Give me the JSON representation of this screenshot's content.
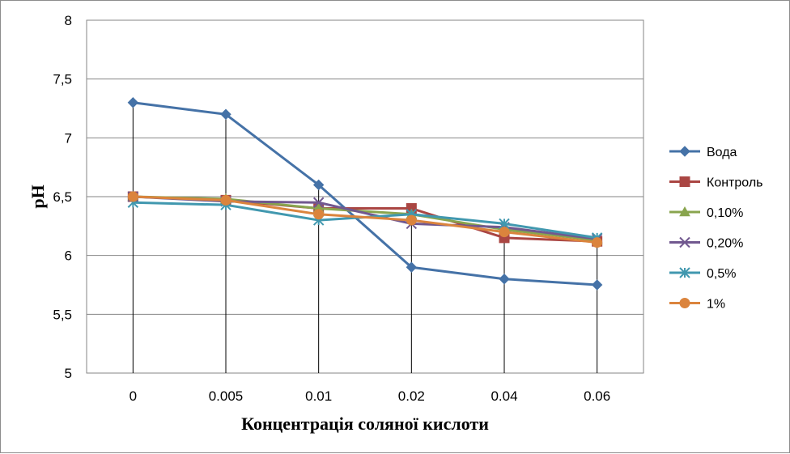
{
  "chart_data": {
    "type": "line",
    "xlabel": "Концентрація  соляної кислоти",
    "ylabel": "pH",
    "categories": [
      "0",
      "0.005",
      "0.01",
      "0.02",
      "0.04",
      "0.06"
    ],
    "y_ticks": [
      {
        "value": 5,
        "label": "5"
      },
      {
        "value": 5.5,
        "label": "5,5"
      },
      {
        "value": 6,
        "label": "6"
      },
      {
        "value": 6.5,
        "label": "6,5"
      },
      {
        "value": 7,
        "label": "7"
      },
      {
        "value": 7.5,
        "label": "7,5"
      },
      {
        "value": 8,
        "label": "8"
      }
    ],
    "ylim": [
      5,
      8
    ],
    "grid": "horizontal",
    "drop_lines": true,
    "legend": "right",
    "series": [
      {
        "name": "Вода",
        "color": "#4572A7",
        "marker": "diamond",
        "values": [
          7.3,
          7.2,
          6.6,
          5.9,
          5.8,
          5.75
        ]
      },
      {
        "name": "Контроль",
        "color": "#AA4643",
        "marker": "square",
        "values": [
          6.5,
          6.47,
          6.4,
          6.4,
          6.15,
          6.12
        ]
      },
      {
        "name": "0,10%",
        "color": "#89A54E",
        "marker": "triangle",
        "values": [
          6.5,
          6.48,
          6.4,
          6.35,
          6.22,
          6.13
        ]
      },
      {
        "name": "0,20%",
        "color": "#71588F",
        "marker": "x",
        "values": [
          6.5,
          6.46,
          6.45,
          6.27,
          6.24,
          6.14
        ]
      },
      {
        "name": "0,5%",
        "color": "#4198AF",
        "marker": "star",
        "values": [
          6.45,
          6.43,
          6.3,
          6.35,
          6.27,
          6.15
        ]
      },
      {
        "name": "1%",
        "color": "#DB843D",
        "marker": "circle",
        "values": [
          6.5,
          6.47,
          6.35,
          6.3,
          6.2,
          6.11
        ]
      }
    ]
  }
}
